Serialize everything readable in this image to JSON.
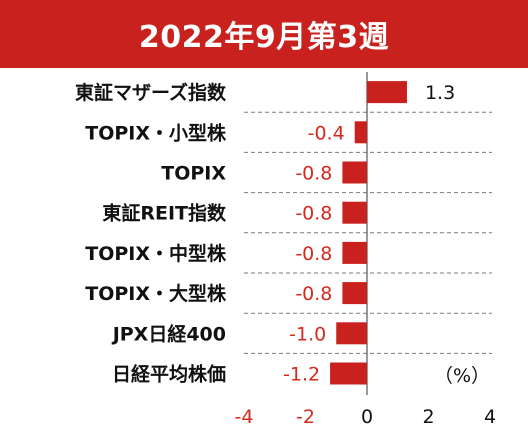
{
  "header": {
    "title": "2022年9月第3週"
  },
  "chart_data": {
    "type": "bar",
    "orientation": "horizontal",
    "categories": [
      "東証マザーズ指数",
      "TOPIX・小型株",
      "TOPIX",
      "東証REIT指数",
      "TOPIX・中型株",
      "TOPIX・大型株",
      "JPX日経400",
      "日経平均株価"
    ],
    "values": [
      1.3,
      -0.4,
      -0.8,
      -0.8,
      -0.8,
      -0.8,
      -1.0,
      -1.2
    ],
    "value_labels": [
      "1.3",
      "-0.4",
      "-0.8",
      "-0.8",
      "-0.8",
      "-0.8",
      "-1.0",
      "-1.2"
    ],
    "xlim": [
      -4,
      4
    ],
    "xticks": [
      -4,
      -2,
      0,
      2,
      4
    ],
    "xtick_labels": [
      "-4",
      "-2",
      "0",
      "2",
      "4"
    ],
    "unit": "（%）",
    "gridlines": "dashed row separators",
    "colors": {
      "bar": "#c9211e",
      "negative_label": "#d42a1e",
      "positive_label": "#111111",
      "negative_tick": "#d42a1e",
      "banner": "#c9211e"
    }
  }
}
